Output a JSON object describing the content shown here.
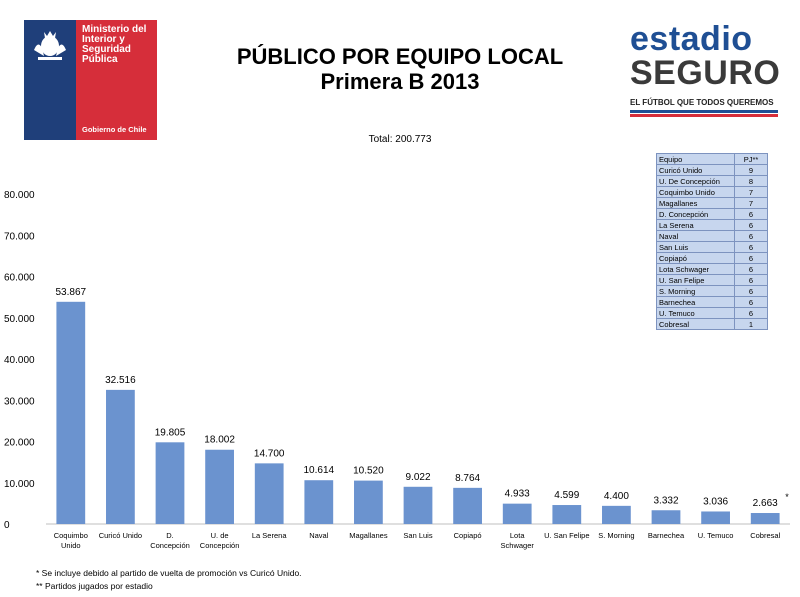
{
  "logo_left": {
    "lines": [
      "Ministerio del",
      "Interior y",
      "Seguridad",
      "Pública"
    ],
    "footer": "Gobierno de Chile"
  },
  "title": {
    "line1": "PÚBLICO POR EQUIPO LOCAL",
    "line2": "Primera B 2013"
  },
  "logo_right": {
    "line1": "estadio",
    "line2": "SEGURO",
    "slogan": "EL FÚTBOL QUE TODOS QUEREMOS"
  },
  "total_label": "Total:  200.773",
  "chart_data": {
    "type": "bar",
    "title": "PÚBLICO POR EQUIPO LOCAL Primera B 2013",
    "categories": [
      "Coquimbo Unido",
      "Curicó Unido",
      "D. Concepción",
      "U. de Concepción",
      "La Serena",
      "Naval",
      "Magallanes",
      "San Luis",
      "Copiapó",
      "Lota Schwager",
      "U. San Felipe",
      "S. Morning",
      "Barnechea",
      "U. Temuco",
      "Cobresal"
    ],
    "category_lines": [
      [
        "Coquimbo",
        "Unido"
      ],
      [
        "Curicó Unido"
      ],
      [
        "D.",
        "Concepción"
      ],
      [
        "U. de",
        "Concepción"
      ],
      [
        "La Serena"
      ],
      [
        "Naval"
      ],
      [
        "Magallanes"
      ],
      [
        "San Luis"
      ],
      [
        "Copiapó"
      ],
      [
        "Lota",
        "Schwager"
      ],
      [
        "U. San Felipe"
      ],
      [
        "S. Morning"
      ],
      [
        "Barnechea"
      ],
      [
        "U. Temuco"
      ],
      [
        "Cobresal"
      ]
    ],
    "values": [
      53867,
      32516,
      19805,
      18002,
      14700,
      10614,
      10520,
      9022,
      8764,
      4933,
      4599,
      4400,
      3332,
      3036,
      2663
    ],
    "value_labels": [
      "53.867",
      "32.516",
      "19.805",
      "18.002",
      "14.700",
      "10.614",
      "10.520",
      "9.022",
      "8.764",
      "4.933",
      "4.599",
      "4.400",
      "3.332",
      "3.036",
      "2.663"
    ],
    "last_label_marker": "*",
    "ylim": [
      0,
      80000
    ],
    "yticks": [
      0,
      10000,
      20000,
      30000,
      40000,
      50000,
      60000,
      70000,
      80000
    ],
    "ytick_labels": [
      "0",
      "10.000",
      "20.000",
      "30.000",
      "40.000",
      "50.000",
      "60.000",
      "70.000",
      "80.000"
    ],
    "bar_color": "#6b93cf",
    "grid": false,
    "legend": "none"
  },
  "pj_table": {
    "headers": [
      "Equipo",
      "PJ**"
    ],
    "rows": [
      [
        "Curicó Unido",
        "9"
      ],
      [
        "U. De Concepción",
        "8"
      ],
      [
        "Coquimbo Unido",
        "7"
      ],
      [
        "Magallanes",
        "7"
      ],
      [
        "D. Concepción",
        "6"
      ],
      [
        "La Serena",
        "6"
      ],
      [
        "Naval",
        "6"
      ],
      [
        "San Luis",
        "6"
      ],
      [
        "Copiapó",
        "6"
      ],
      [
        "Lota Schwager",
        "6"
      ],
      [
        "U. San Felipe",
        "6"
      ],
      [
        "S. Morning",
        "6"
      ],
      [
        "Barnechea",
        "6"
      ],
      [
        "U. Temuco",
        "6"
      ],
      [
        "Cobresal",
        "1"
      ]
    ]
  },
  "footnotes": [
    "* Se incluye debido al partido de vuelta de promoción vs Curicó Unido.",
    "** Partidos jugados por estadio"
  ],
  "colors": {
    "blue": "#1f3f7a",
    "red": "#d62e3a",
    "brand_blue": "#1f4f94"
  }
}
